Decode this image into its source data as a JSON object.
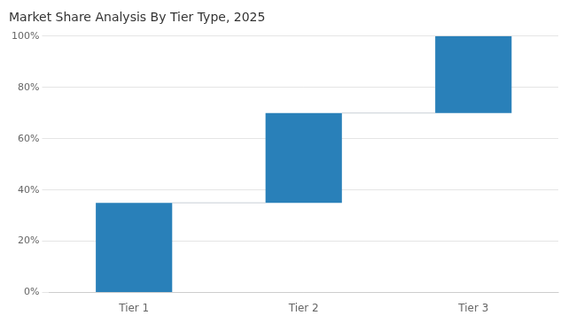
{
  "chart_data": {
    "type": "waterfall",
    "title": "Market Share Analysis By Tier Type, 2025",
    "categories": [
      "Tier 1",
      "Tier 2",
      "Tier 3"
    ],
    "values": [
      35,
      35,
      30
    ],
    "color": "#2980b9",
    "ylim": [
      0,
      100
    ],
    "yticks": [
      {
        "value": 0,
        "label": "0%"
      },
      {
        "value": 20,
        "label": "20%"
      },
      {
        "value": 40,
        "label": "40%"
      },
      {
        "value": 60,
        "label": "60%"
      },
      {
        "value": 80,
        "label": "80%"
      },
      {
        "value": 100,
        "label": "100%"
      }
    ],
    "grid": true
  }
}
